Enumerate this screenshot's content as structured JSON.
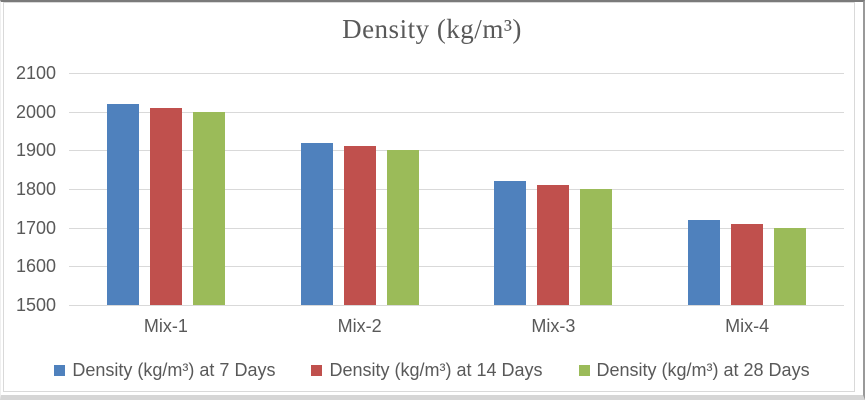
{
  "chart_data": {
    "type": "bar",
    "title": "Density (kg/m³)",
    "categories": [
      "Mix-1",
      "Mix-2",
      "Mix-3",
      "Mix-4"
    ],
    "series": [
      {
        "name": "Density (kg/m³) at 7 Days",
        "color": "#4F81BD",
        "values": [
          2020,
          1920,
          1820,
          1720
        ]
      },
      {
        "name": "Density (kg/m³) at 14 Days",
        "color": "#C0504D",
        "values": [
          2010,
          1910,
          1810,
          1710
        ]
      },
      {
        "name": "Density (kg/m³) at 28 Days",
        "color": "#9BBB59",
        "values": [
          2000,
          1900,
          1800,
          1700
        ]
      }
    ],
    "ylim": [
      1500,
      2100
    ],
    "yticks": [
      2100,
      2000,
      1900,
      1800,
      1700,
      1600,
      1500
    ],
    "xlabel": "",
    "ylabel": "",
    "grid": true,
    "legend_position": "bottom",
    "colors": {
      "text": "#595959",
      "gridline": "#D9D9D9",
      "background": "#FFFFFF"
    }
  }
}
